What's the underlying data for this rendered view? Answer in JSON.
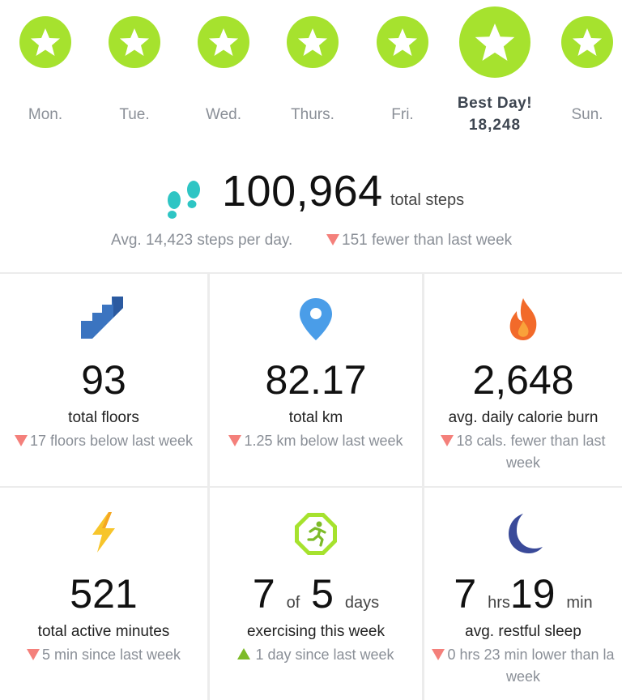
{
  "week": {
    "days": [
      {
        "label": "Mon."
      },
      {
        "label": "Tue."
      },
      {
        "label": "Wed."
      },
      {
        "label": "Thurs."
      },
      {
        "label": "Fri."
      },
      {
        "best_title": "Best Day!",
        "best_value": "18,248"
      },
      {
        "label": "Sun."
      }
    ],
    "star_color": "#a6e22e"
  },
  "steps": {
    "total": "100,964",
    "unit": "total steps",
    "avg": "Avg. 14,423 steps per day.",
    "change": "151 fewer than last week",
    "icon": "footprints-icon"
  },
  "stats": [
    {
      "icon": "stairs-icon",
      "value": "93",
      "label": "total floors",
      "change": "17 floors below last week",
      "trend": "down"
    },
    {
      "icon": "location-pin-icon",
      "value": "82.17",
      "label": "total km",
      "change": "1.25 km below last week",
      "trend": "down"
    },
    {
      "icon": "flame-icon",
      "value": "2,648",
      "label": "avg. daily calorie burn",
      "change_line1": "18 cals. fewer than last",
      "change_line2": "week",
      "trend": "down"
    },
    {
      "icon": "lightning-bolt-icon",
      "value": "521",
      "label": "total active minutes",
      "change": "5 min since last week",
      "trend": "down"
    },
    {
      "icon": "running-person-icon",
      "value_a": "7",
      "value_of": "of",
      "value_b": "5",
      "value_unit": "days",
      "label": "exercising this week",
      "change": "1 day since last week",
      "trend": "up"
    },
    {
      "icon": "moon-icon",
      "hours": "7",
      "hours_unit": "hrs",
      "minutes": "19",
      "minutes_unit": "min",
      "label": "avg. restful sleep",
      "change_line1": "0 hrs 23 min lower than la",
      "change_line2": "week",
      "trend": "down"
    }
  ],
  "colors": {
    "green": "#a6e22e",
    "down_arrow": "#f4807b",
    "up_arrow": "#7dbb28",
    "teal": "#2ec5c4",
    "blue": "#3b74c0",
    "orange": "#f26a2a",
    "yellow": "#f7c52b",
    "navy": "#3a4a99"
  }
}
